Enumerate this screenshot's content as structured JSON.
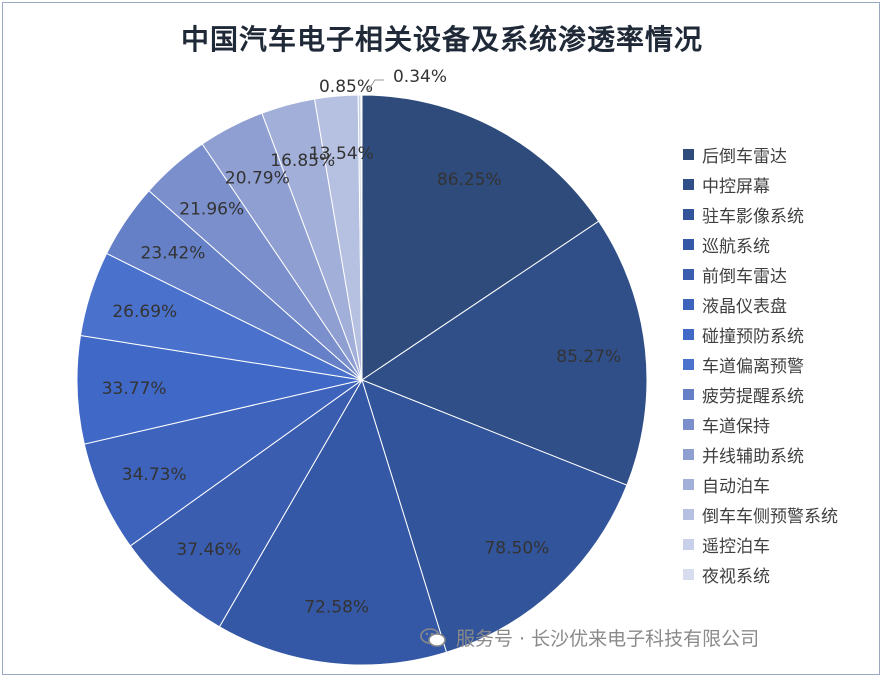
{
  "chart_data": {
    "type": "pie",
    "title": "中国汽车电子相关设备及系统渗透率情况",
    "labels": [
      "后倒车雷达",
      "中控屏幕",
      "驻车影像系统",
      "巡航系统",
      "前倒车雷达",
      "液晶仪表盘",
      "碰撞预防系统",
      "车道偏离预警",
      "疲劳提醒系统",
      "车道保持",
      "并线辅助系统",
      "自动泊车",
      "倒车车侧预警系统",
      "遥控泊车",
      "夜视系统"
    ],
    "values": [
      86.25,
      85.27,
      78.5,
      72.58,
      37.46,
      34.73,
      33.77,
      26.69,
      23.42,
      21.96,
      20.79,
      16.85,
      13.54,
      0.85,
      0.34
    ],
    "value_labels": [
      "86.25%",
      "85.27%",
      "78.50%",
      "72.58%",
      "37.46%",
      "34.73%",
      "33.77%",
      "26.69%",
      "23.42%",
      "21.96%",
      "20.79%",
      "16.85%",
      "13.54%",
      "0.85%",
      "0.34%"
    ],
    "colors": [
      "#2f4b7c",
      "#304f89",
      "#32549a",
      "#3558a6",
      "#3a5db0",
      "#3e63bc",
      "#4068c6",
      "#4a72cc",
      "#6680c8",
      "#7a8fcc",
      "#8f9fd2",
      "#a2afd9",
      "#b6c0e1",
      "#c8d0ea",
      "#d7dcef"
    ],
    "legend_position": "right",
    "grid": false
  },
  "watermark": {
    "text": "服务号 · 长沙优来电子科技有限公司",
    "icon": "wechat-icon"
  }
}
